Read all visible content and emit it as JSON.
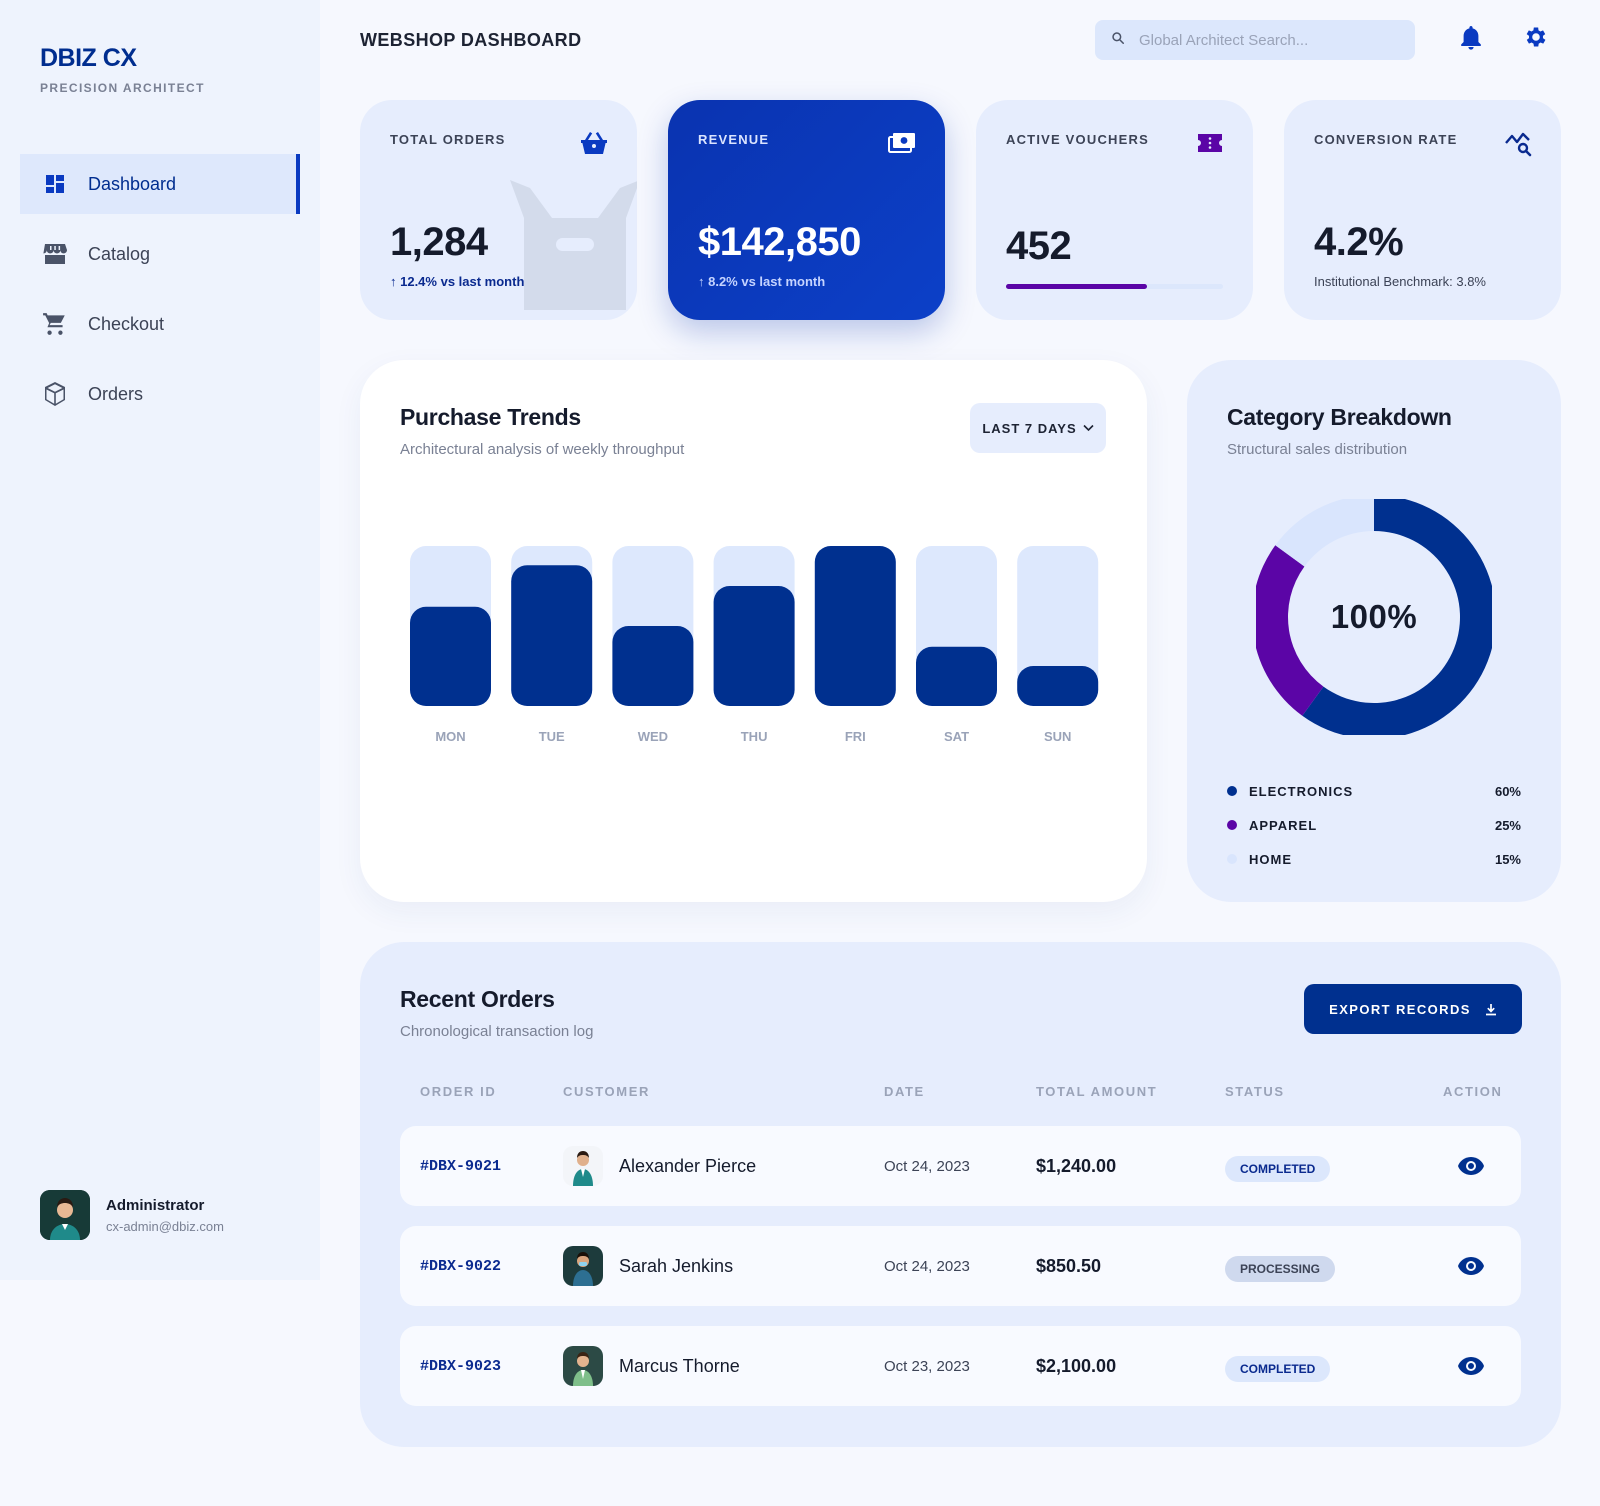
{
  "brand": {
    "title": "DBIZ CX",
    "subtitle": "PRECISION ARCHITECT"
  },
  "sidebar": {
    "items": [
      {
        "label": "Dashboard",
        "icon": "dashboard-icon",
        "active": true
      },
      {
        "label": "Catalog",
        "icon": "storefront-icon",
        "active": false
      },
      {
        "label": "Checkout",
        "icon": "cart-icon",
        "active": false
      },
      {
        "label": "Orders",
        "icon": "package-icon",
        "active": false
      }
    ],
    "user": {
      "name": "Administrator",
      "email": "cx-admin@dbiz.com"
    }
  },
  "header": {
    "title": "WEBSHOP DASHBOARD",
    "search_placeholder": "Global Architect Search...",
    "search_value": ""
  },
  "stats": {
    "orders": {
      "label": "TOTAL ORDERS",
      "value": "1,284",
      "sub": "↑ 12.4% vs last month",
      "icon": "basket-icon"
    },
    "revenue": {
      "label": "REVENUE",
      "value": "$142,850",
      "sub": "↑ 8.2% vs last month",
      "icon": "payments-icon"
    },
    "vouchers": {
      "label": "ACTIVE VOUCHERS",
      "value": "452",
      "progress": 0.65,
      "icon": "ticket-icon"
    },
    "conversion": {
      "label": "CONVERSION RATE",
      "value": "4.2%",
      "sub": "Institutional Benchmark: 3.8%",
      "icon": "query-stats-icon"
    }
  },
  "trends": {
    "title": "Purchase Trends",
    "subtitle": "Architectural analysis of weekly throughput",
    "range_label": "LAST 7 DAYS"
  },
  "chart_data": [
    {
      "type": "bar",
      "categories": [
        "MON",
        "TUE",
        "WED",
        "THU",
        "FRI",
        "SAT",
        "SUN"
      ],
      "values": [
        62,
        88,
        50,
        75,
        100,
        37,
        25
      ],
      "ylim": [
        0,
        100
      ],
      "colors": {
        "bar": "#00308f",
        "track": "#dde8fd"
      }
    },
    {
      "type": "pie",
      "categories": [
        "ELECTRONICS",
        "APPAREL",
        "HOME"
      ],
      "values": [
        60,
        25,
        15
      ],
      "colors": [
        "#00308f",
        "#5b05a6",
        "#d9e5fd"
      ],
      "center_label": "100%"
    }
  ],
  "category": {
    "title": "Category Breakdown",
    "subtitle": "Structural sales distribution",
    "legend": [
      {
        "name": "ELECTRONICS",
        "value": "60%",
        "color": "#00308f"
      },
      {
        "name": "APPAREL",
        "value": "25%",
        "color": "#5b05a6"
      },
      {
        "name": "HOME",
        "value": "15%",
        "color": "#d9e5fd"
      }
    ]
  },
  "orders": {
    "title": "Recent Orders",
    "subtitle": "Chronological transaction log",
    "export_label": "EXPORT RECORDS",
    "columns": [
      "ORDER ID",
      "CUSTOMER",
      "DATE",
      "TOTAL AMOUNT",
      "STATUS",
      "ACTION"
    ],
    "rows": [
      {
        "id": "#DBX-9021",
        "customer": "Alexander Pierce",
        "date": "Oct 24, 2023",
        "amount": "$1,240.00",
        "status": "COMPLETED"
      },
      {
        "id": "#DBX-9022",
        "customer": "Sarah Jenkins",
        "date": "Oct 24, 2023",
        "amount": "$850.50",
        "status": "PROCESSING"
      },
      {
        "id": "#DBX-9023",
        "customer": "Marcus Thorne",
        "date": "Oct 23, 2023",
        "amount": "$2,100.00",
        "status": "COMPLETED"
      }
    ]
  }
}
